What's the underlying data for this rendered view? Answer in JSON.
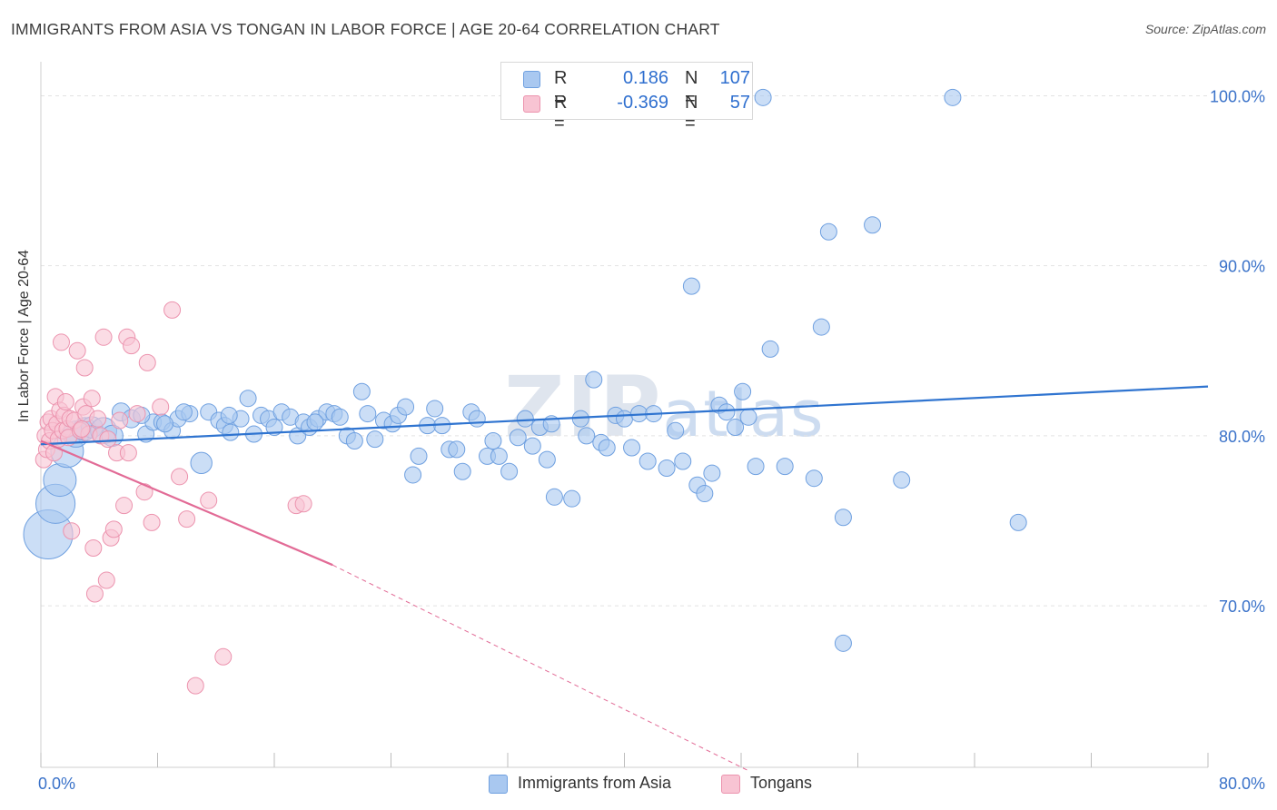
{
  "title": "IMMIGRANTS FROM ASIA VS TONGAN IN LABOR FORCE | AGE 20-64 CORRELATION CHART",
  "source": "Source: ZipAtlas.com",
  "watermark": {
    "bold": "ZIP",
    "light": "atlas"
  },
  "legend": [
    {
      "r_label": "R =",
      "r_value": "0.186",
      "n_label": "N =",
      "n_value": "107",
      "color": "#a9c8f0"
    },
    {
      "r_label": "R =",
      "r_value": "-0.369",
      "n_label": "N =",
      "n_value": "57",
      "color": "#f6b6c9"
    }
  ],
  "bottom_legend": [
    "Immigrants from Asia",
    "Tongans"
  ],
  "colors": {
    "blue_fill": "#a9c8f0",
    "blue_stroke": "#6fa0e0",
    "blue_line": "#2f74d0",
    "pink_fill": "#f8c4d3",
    "pink_stroke": "#ec93ae",
    "pink_line": "#e26b96",
    "tick_label": "#3a72c9",
    "grid": "#e2e2e2"
  },
  "chart_data": {
    "type": "scatter",
    "title": "IMMIGRANTS FROM ASIA VS TONGAN IN LABOR FORCE | AGE 20-64 CORRELATION CHART",
    "xlabel": "",
    "ylabel": "In Labor Force | Age 20-64",
    "xlim": [
      0,
      80
    ],
    "ylim": [
      60.5,
      102
    ],
    "x_tick_labels": [
      "0.0%",
      "80.0%"
    ],
    "y_ticks": [
      70,
      80,
      90,
      100
    ],
    "y_tick_labels": [
      "70.0%",
      "80.0%",
      "90.0%",
      "100.0%"
    ],
    "grid": true,
    "series": [
      {
        "name": "Immigrants from Asia",
        "trend": {
          "x": [
            0,
            80
          ],
          "y": [
            79.5,
            82.9
          ],
          "style": "solid"
        },
        "points": [
          [
            0.5,
            74.2,
            3
          ],
          [
            1.0,
            76.0,
            2.4
          ],
          [
            1.3,
            77.4,
            2
          ],
          [
            1.8,
            79.1,
            2
          ],
          [
            2.4,
            80.1,
            1.6
          ],
          [
            3.0,
            80.4,
            1.4
          ],
          [
            3.5,
            80.5,
            1.3
          ],
          [
            4.3,
            80.3,
            1.6
          ],
          [
            4.9,
            80.0,
            1.3
          ],
          [
            5.5,
            81.4,
            1.1
          ],
          [
            6.2,
            81.0,
            1.1
          ],
          [
            7.2,
            80.1,
            1
          ],
          [
            7.7,
            80.8,
            1
          ],
          [
            8.3,
            80.8,
            1
          ],
          [
            9.0,
            80.3,
            1
          ],
          [
            9.4,
            81.0,
            1
          ],
          [
            10.2,
            81.3,
            1
          ],
          [
            11.0,
            78.4,
            1.3
          ],
          [
            11.5,
            81.4,
            1
          ],
          [
            12.2,
            80.9,
            1
          ],
          [
            12.6,
            80.6,
            1
          ],
          [
            13.0,
            80.2,
            1
          ],
          [
            13.7,
            81.0,
            1
          ],
          [
            14.2,
            82.2,
            1
          ],
          [
            14.6,
            80.1,
            1
          ],
          [
            15.1,
            81.2,
            1
          ],
          [
            15.6,
            81.0,
            1
          ],
          [
            16.0,
            80.5,
            1
          ],
          [
            16.5,
            81.4,
            1
          ],
          [
            17.1,
            81.1,
            1
          ],
          [
            17.6,
            80.0,
            1
          ],
          [
            18.0,
            80.8,
            1
          ],
          [
            18.4,
            80.5,
            1
          ],
          [
            19.0,
            81.0,
            1
          ],
          [
            19.6,
            81.4,
            1
          ],
          [
            20.1,
            81.3,
            1
          ],
          [
            20.5,
            81.1,
            1
          ],
          [
            21.0,
            80.0,
            1
          ],
          [
            21.5,
            79.7,
            1
          ],
          [
            22.0,
            82.6,
            1
          ],
          [
            22.4,
            81.3,
            1
          ],
          [
            22.9,
            79.8,
            1
          ],
          [
            23.5,
            80.9,
            1
          ],
          [
            24.1,
            80.7,
            1
          ],
          [
            24.5,
            81.2,
            1
          ],
          [
            25.0,
            81.7,
            1
          ],
          [
            25.5,
            77.7,
            1
          ],
          [
            25.9,
            78.8,
            1
          ],
          [
            26.5,
            80.6,
            1
          ],
          [
            27.0,
            81.6,
            1
          ],
          [
            27.5,
            80.6,
            1
          ],
          [
            28.0,
            79.2,
            1
          ],
          [
            28.5,
            79.2,
            1
          ],
          [
            28.9,
            77.9,
            1
          ],
          [
            29.5,
            81.4,
            1
          ],
          [
            29.9,
            81.0,
            1
          ],
          [
            30.6,
            78.8,
            1
          ],
          [
            31.0,
            79.7,
            1
          ],
          [
            31.4,
            78.8,
            1
          ],
          [
            32.1,
            77.9,
            1
          ],
          [
            32.7,
            79.9,
            1
          ],
          [
            33.2,
            81.0,
            1
          ],
          [
            33.7,
            79.4,
            1
          ],
          [
            34.2,
            80.5,
            1
          ],
          [
            34.7,
            78.6,
            1
          ],
          [
            35.0,
            80.7,
            1
          ],
          [
            35.2,
            76.4,
            1
          ],
          [
            36.4,
            76.3,
            1
          ],
          [
            37.0,
            81.0,
            1
          ],
          [
            37.4,
            80.0,
            1
          ],
          [
            37.9,
            83.3,
            1
          ],
          [
            38.4,
            79.6,
            1
          ],
          [
            38.8,
            79.3,
            1
          ],
          [
            39.4,
            81.2,
            1
          ],
          [
            40.0,
            81.0,
            1
          ],
          [
            40.5,
            79.3,
            1
          ],
          [
            41.0,
            81.3,
            1
          ],
          [
            41.6,
            78.5,
            1
          ],
          [
            42.0,
            81.3,
            1
          ],
          [
            42.9,
            78.1,
            1
          ],
          [
            43.5,
            80.3,
            1
          ],
          [
            44.0,
            78.5,
            1
          ],
          [
            44.6,
            88.8,
            1
          ],
          [
            45.0,
            77.1,
            1
          ],
          [
            45.5,
            76.6,
            1
          ],
          [
            46.0,
            77.8,
            1
          ],
          [
            46.5,
            81.8,
            1
          ],
          [
            47.0,
            81.4,
            1
          ],
          [
            47.6,
            80.5,
            1
          ],
          [
            48.1,
            82.6,
            1
          ],
          [
            48.5,
            81.1,
            1
          ],
          [
            49.0,
            78.2,
            1
          ],
          [
            49.5,
            99.9,
            1
          ],
          [
            50.0,
            85.1,
            1
          ],
          [
            51.0,
            78.2,
            1
          ],
          [
            53.0,
            77.5,
            1
          ],
          [
            53.5,
            86.4,
            1
          ],
          [
            54.0,
            92.0,
            1
          ],
          [
            55.0,
            75.2,
            1
          ],
          [
            55.0,
            67.8,
            1
          ],
          [
            57.0,
            92.4,
            1
          ],
          [
            59.0,
            77.4,
            1
          ],
          [
            62.5,
            99.9,
            1
          ],
          [
            67.0,
            74.9,
            1
          ],
          [
            8.5,
            80.7,
            1
          ],
          [
            9.8,
            81.4,
            1
          ],
          [
            12.9,
            81.2,
            1
          ],
          [
            6.9,
            81.2,
            1
          ],
          [
            18.8,
            80.8,
            1
          ]
        ]
      },
      {
        "name": "Tongans",
        "trend": {
          "x": [
            0,
            20
          ],
          "y": [
            79.7,
            72.4
          ],
          "dash_to": [
            48.5,
            60.3
          ]
        },
        "points": [
          [
            0.2,
            78.6,
            1
          ],
          [
            0.3,
            80.0,
            1
          ],
          [
            0.4,
            79.2,
            1
          ],
          [
            0.5,
            80.8,
            1
          ],
          [
            0.6,
            79.7,
            1
          ],
          [
            0.7,
            81.0,
            1
          ],
          [
            0.8,
            80.3,
            1
          ],
          [
            0.9,
            79.0,
            1
          ],
          [
            1.0,
            82.3,
            1
          ],
          [
            1.1,
            80.7,
            1
          ],
          [
            1.2,
            79.8,
            1
          ],
          [
            1.3,
            81.5,
            1
          ],
          [
            1.4,
            85.5,
            1
          ],
          [
            1.5,
            80.3,
            1
          ],
          [
            1.6,
            81.2,
            1
          ],
          [
            1.7,
            82.0,
            1
          ],
          [
            1.8,
            80.4,
            1
          ],
          [
            1.9,
            79.9,
            1
          ],
          [
            2.0,
            81.0,
            1
          ],
          [
            2.1,
            74.4,
            1
          ],
          [
            2.3,
            80.9,
            1
          ],
          [
            2.5,
            85.0,
            1
          ],
          [
            2.7,
            80.3,
            1
          ],
          [
            2.9,
            81.7,
            1
          ],
          [
            3.0,
            84.0,
            1
          ],
          [
            3.1,
            81.3,
            1
          ],
          [
            3.3,
            80.1,
            1
          ],
          [
            3.5,
            82.2,
            1
          ],
          [
            3.6,
            73.4,
            1
          ],
          [
            3.7,
            70.7,
            1
          ],
          [
            3.9,
            81.0,
            1
          ],
          [
            4.1,
            80.0,
            1
          ],
          [
            4.3,
            85.8,
            1
          ],
          [
            4.5,
            71.5,
            1
          ],
          [
            4.6,
            79.8,
            1
          ],
          [
            4.8,
            74.0,
            1
          ],
          [
            5.0,
            74.5,
            1
          ],
          [
            5.2,
            79.0,
            1
          ],
          [
            5.4,
            80.9,
            1
          ],
          [
            5.7,
            75.9,
            1
          ],
          [
            5.9,
            85.8,
            1
          ],
          [
            6.2,
            85.3,
            1
          ],
          [
            6.6,
            81.3,
            1
          ],
          [
            7.1,
            76.7,
            1
          ],
          [
            7.3,
            84.3,
            1
          ],
          [
            7.6,
            74.9,
            1
          ],
          [
            8.2,
            81.7,
            1
          ],
          [
            9.0,
            87.4,
            1
          ],
          [
            9.5,
            77.6,
            1
          ],
          [
            10.0,
            75.1,
            1
          ],
          [
            10.6,
            65.3,
            1
          ],
          [
            11.5,
            76.2,
            1
          ],
          [
            12.5,
            67.0,
            1
          ],
          [
            17.5,
            75.9,
            1
          ],
          [
            18.0,
            76.0,
            1
          ],
          [
            2.8,
            80.4,
            1
          ],
          [
            6.0,
            79.0,
            1
          ]
        ]
      }
    ]
  }
}
